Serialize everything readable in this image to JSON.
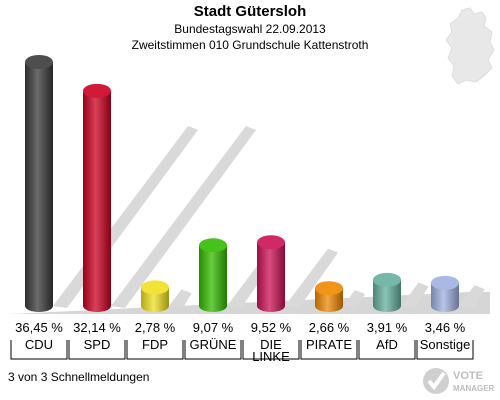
{
  "title": "Stadt Gütersloh",
  "subtitle1": "Bundestagswahl 22.09.2013",
  "subtitle2": "Zweitstimmen 010 Grundschule Kattenstroth",
  "footer": "3 von 3 Schnellmeldungen",
  "logo_text": "VOTE MANAGER",
  "chart_data": {
    "type": "bar",
    "categories": [
      "CDU",
      "SPD",
      "FDP",
      "GRÜNE",
      "DIE LINKE",
      "PIRATE",
      "AfD",
      "Sonstige"
    ],
    "values": [
      36.45,
      32.14,
      2.78,
      9.07,
      9.52,
      2.66,
      3.91,
      3.46
    ],
    "value_labels": [
      "36,45 %",
      "32,14 %",
      "2,78 %",
      "9,07 %",
      "9,52 %",
      "2,66 %",
      "3,91 %",
      "3,46 %"
    ],
    "colors": [
      "#3a3a3a",
      "#cc0022",
      "#f0e020",
      "#33bb00",
      "#cc1155",
      "#f08800",
      "#66b0a0",
      "#a0b0e0"
    ],
    "ylim": [
      0,
      40
    ],
    "grid": false,
    "legend": "none"
  }
}
